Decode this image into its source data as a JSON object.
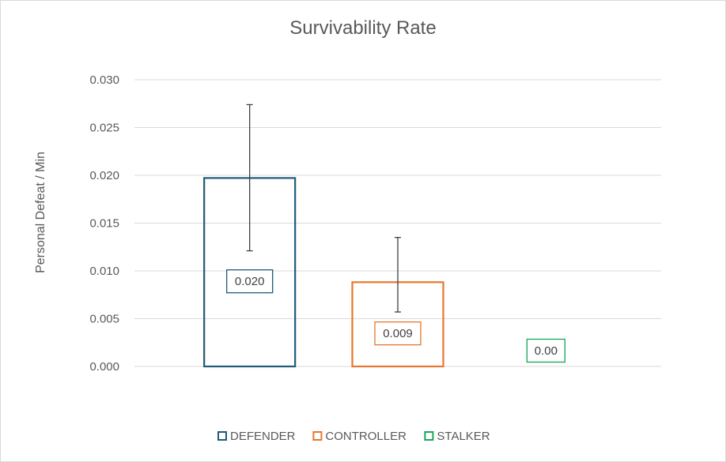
{
  "chart_data": {
    "type": "bar",
    "title": "Survivability Rate",
    "xlabel": "",
    "ylabel": "Personal Defeat / Min",
    "ylim": [
      0,
      0.03
    ],
    "yticks": [
      "0.000",
      "0.005",
      "0.010",
      "0.015",
      "0.020",
      "0.025",
      "0.030"
    ],
    "grid": true,
    "legend_position": "bottom",
    "series": [
      {
        "name": "DEFENDER",
        "value": 0.0198,
        "label": "0.020",
        "error_low": 0.0121,
        "error_high": 0.0274,
        "color": "#1f5a78"
      },
      {
        "name": "CONTROLLER",
        "value": 0.0089,
        "label": "0.009",
        "error_low": 0.0057,
        "error_high": 0.0135,
        "color": "#e8772e"
      },
      {
        "name": "STALKER",
        "value": 0.0,
        "label": "0.00",
        "color": "#1aa65a"
      }
    ]
  }
}
